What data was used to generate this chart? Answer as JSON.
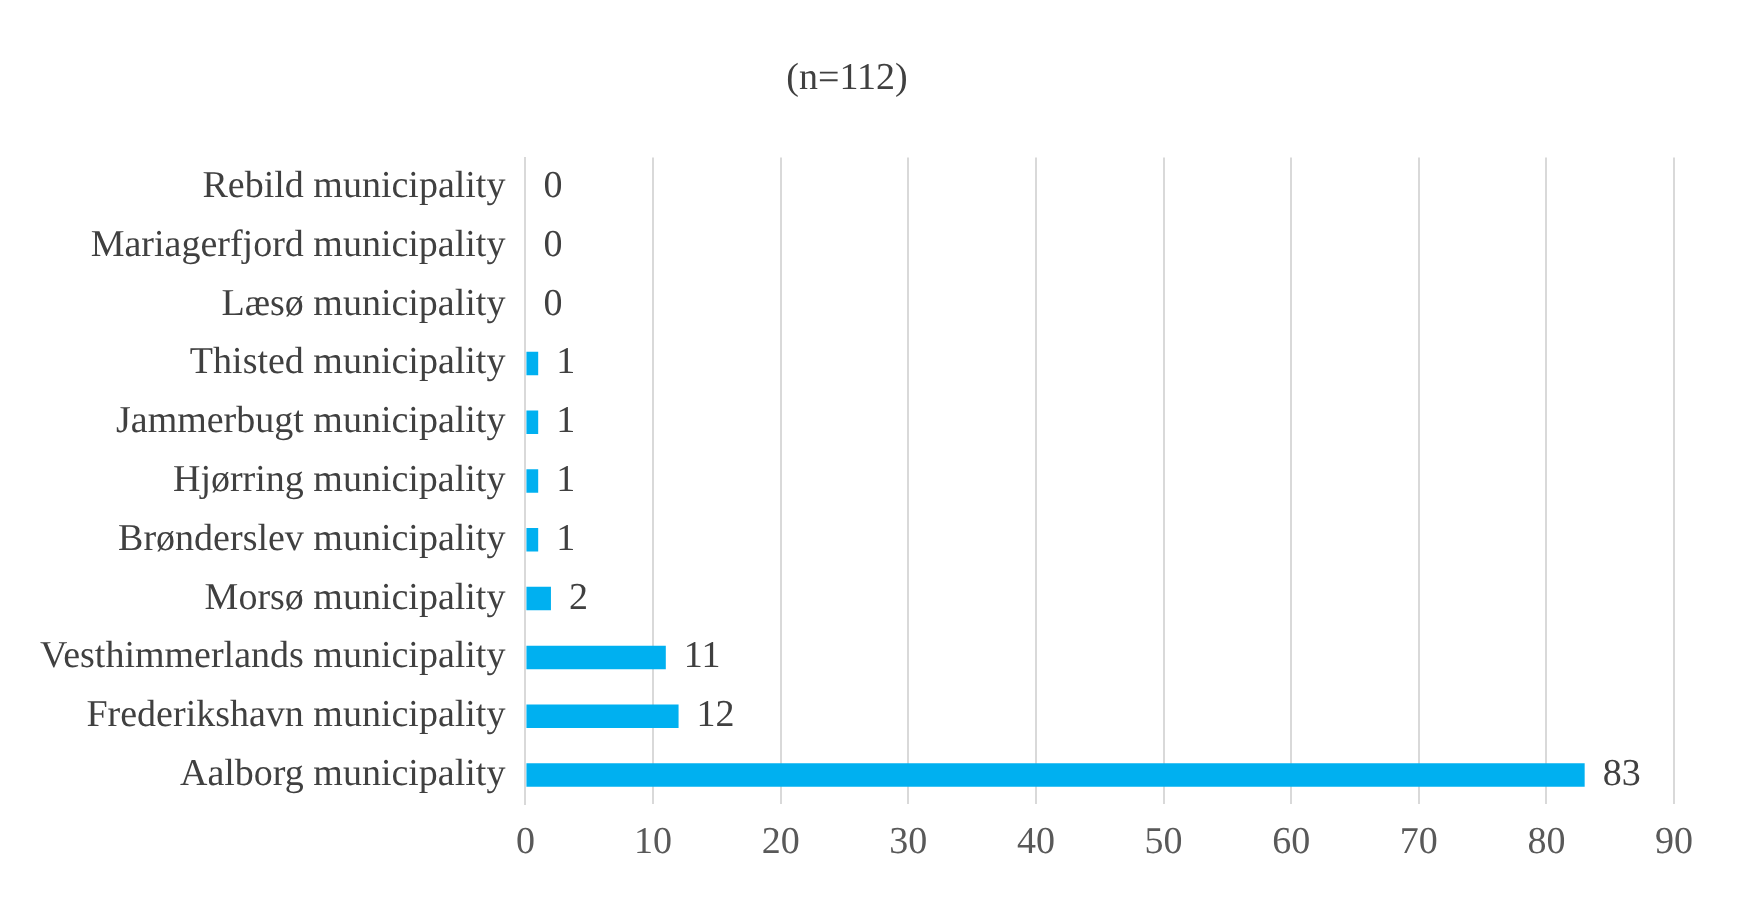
{
  "chart_data": {
    "type": "bar",
    "orientation": "horizontal",
    "title": "(n=112)",
    "categories": [
      "Rebild municipality",
      "Mariagerfjord municipality",
      "Læsø municipality",
      "Thisted municipality",
      "Jammerbugt municipality",
      "Hjørring municipality",
      "Brønderslev municipality",
      "Morsø municipality",
      "Vesthimmerlands municipality",
      "Frederikshavn municipality",
      "Aalborg municipality"
    ],
    "values": [
      0,
      0,
      0,
      1,
      1,
      1,
      1,
      2,
      11,
      12,
      83
    ],
    "color": "#00b0f0",
    "xlim": [
      0,
      90
    ],
    "xticks": [
      0,
      10,
      20,
      30,
      40,
      50,
      60,
      70,
      80,
      90
    ],
    "grid": "x",
    "data_labels": true
  }
}
